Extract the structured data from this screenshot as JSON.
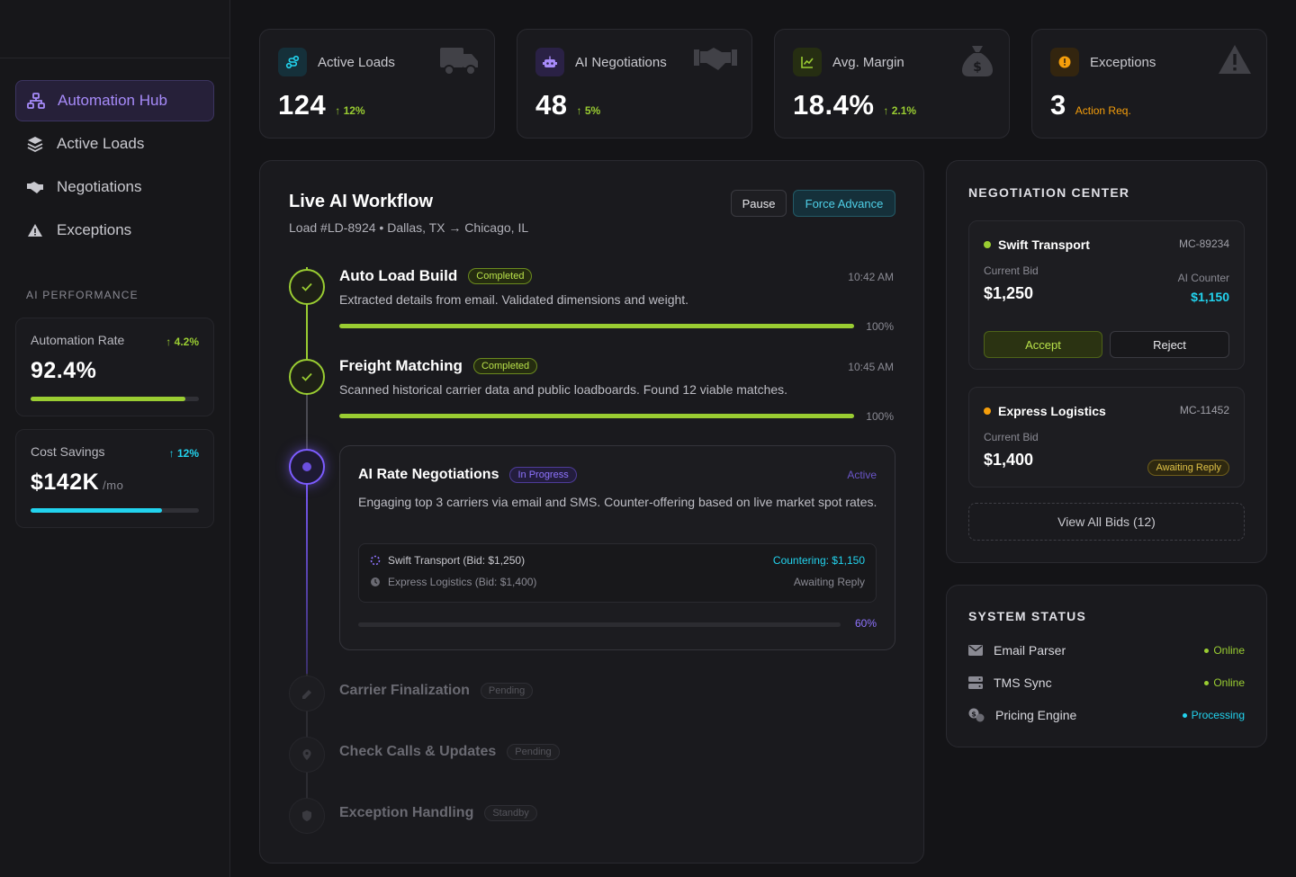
{
  "sidebar": {
    "nav": [
      {
        "label": "Automation Hub",
        "icon": "sitemap-icon"
      },
      {
        "label": "Active Loads",
        "icon": "layers-icon"
      },
      {
        "label": "Negotiations",
        "icon": "handshake-icon"
      },
      {
        "label": "Exceptions",
        "icon": "warning-icon"
      }
    ],
    "section_label": "AI PERFORMANCE",
    "metrics": [
      {
        "label": "Automation Rate",
        "delta": "4.2%",
        "value": "92.4%",
        "unit": "",
        "progress": 0.92,
        "color": "#9acd32"
      },
      {
        "label": "Cost Savings",
        "delta": "12%",
        "value": "$142K",
        "unit": "/mo",
        "progress": 0.78,
        "color": "#22d3ee"
      }
    ]
  },
  "stats": [
    {
      "label": "Active Loads",
      "value": "124",
      "delta": "12%",
      "delta_color": "#9acd32",
      "icon": "route-icon",
      "ghost": "truck-icon",
      "accent": "#22d3ee"
    },
    {
      "label": "AI Negotiations",
      "value": "48",
      "delta": "5%",
      "delta_color": "#9acd32",
      "icon": "robot-icon",
      "ghost": "handshake-icon",
      "accent": "#a78bfa"
    },
    {
      "label": "Avg. Margin",
      "value": "18.4%",
      "delta": "2.1%",
      "delta_color": "#9acd32",
      "icon": "chart-line-icon",
      "ghost": "money-bag-icon",
      "accent": "#9acd32"
    },
    {
      "label": "Exceptions",
      "value": "3",
      "delta": "Action Req.",
      "delta_color": "#f59e0b",
      "icon": "alert-circle-icon",
      "ghost": "warning-icon",
      "accent": "#f59e0b"
    }
  ],
  "workflow": {
    "title": "Live AI Workflow",
    "subtitle": "Load #LD-8924 • Dallas, TX → Chicago, IL",
    "pause_label": "Pause",
    "force_label": "Force Advance",
    "steps": [
      {
        "title": "Auto Load Build",
        "badge": "Completed",
        "time": "10:42 AM",
        "desc": "Extracted details from email. Validated dimensions and weight.",
        "pct": "100%"
      },
      {
        "title": "Freight Matching",
        "badge": "Completed",
        "time": "10:45 AM",
        "desc": "Scanned historical carrier data and public loadboards. Found 12 viable matches.",
        "pct": "100%"
      }
    ],
    "active_step": {
      "title": "AI Rate Negotiations",
      "badge": "In Progress",
      "status": "Active",
      "desc": "Engaging top 3 carriers via email and SMS. Counter-offering based on live market spot rates.",
      "rows": [
        {
          "carrier": "Swift Transport (Bid: $1,250)",
          "status": "Countering: $1,150"
        },
        {
          "carrier": "Express Logistics (Bid: $1,400)",
          "status": "Awaiting Reply"
        }
      ],
      "pct": "60%",
      "progress": 0.6
    },
    "pending_steps": [
      {
        "title": "Carrier Finalization",
        "badge": "Pending",
        "icon": "signature-icon"
      },
      {
        "title": "Check Calls & Updates",
        "badge": "Pending",
        "icon": "map-pin-icon"
      },
      {
        "title": "Exception Handling",
        "badge": "Standby",
        "icon": "shield-icon"
      }
    ]
  },
  "negotiation": {
    "title": "NEGOTIATION CENTER",
    "bids": [
      {
        "carrier": "Swift Transport",
        "mc": "MC-89234",
        "current_label": "Current Bid",
        "current": "$1,250",
        "counter_label": "AI Counter",
        "counter": "$1,150",
        "accept": "Accept",
        "reject": "Reject",
        "dot": "#9acd32"
      },
      {
        "carrier": "Express Logistics",
        "mc": "MC-11452",
        "current_label": "Current Bid",
        "current": "$1,400",
        "status": "Awaiting Reply",
        "dot": "#f59e0b"
      }
    ],
    "view_all": "View All Bids (12)"
  },
  "system": {
    "title": "SYSTEM STATUS",
    "items": [
      {
        "label": "Email Parser",
        "status": "Online",
        "color": "#9acd32",
        "icon": "envelope-icon"
      },
      {
        "label": "TMS Sync",
        "status": "Online",
        "color": "#9acd32",
        "icon": "server-icon"
      },
      {
        "label": "Pricing Engine",
        "status": "Processing",
        "color": "#22d3ee",
        "icon": "pricing-icon"
      }
    ]
  }
}
